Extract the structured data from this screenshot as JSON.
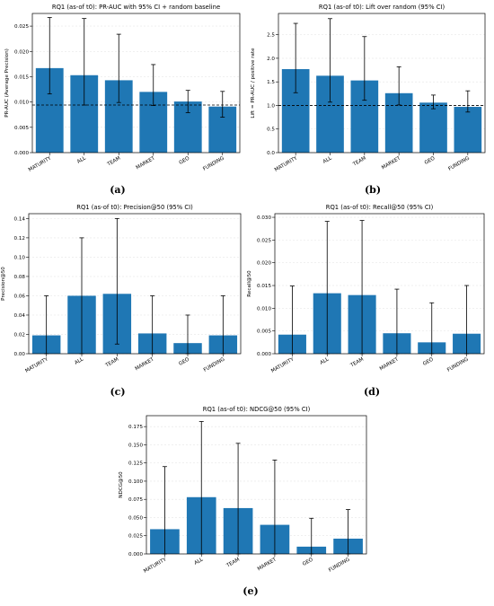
{
  "chart_data": [
    {
      "type": "bar",
      "title": "RQ1 (as-of t0): PR-AUC with 95% CI + random baseline",
      "xlabel": "",
      "ylabel": "PR-AUC (Average Precision)",
      "categories": [
        "MATURITY",
        "ALL",
        "TEAM",
        "MARKET",
        "GEO",
        "FUNDING"
      ],
      "values": [
        0.0167,
        0.0153,
        0.0143,
        0.012,
        0.0101,
        0.0091
      ],
      "ci_low": [
        0.0116,
        0.0094,
        0.0099,
        0.0093,
        0.0079,
        0.007
      ],
      "ci_high": [
        0.0267,
        0.0265,
        0.0234,
        0.0174,
        0.0123,
        0.0121
      ],
      "ylim": [
        0,
        0.0275
      ],
      "yticks": [
        0,
        0.005,
        0.01,
        0.015,
        0.02,
        0.025
      ],
      "ytick_labels": [
        "0.000",
        "0.005",
        "0.010",
        "0.015",
        "0.020",
        "0.025"
      ],
      "reference_line": 0.0094,
      "grid": "y",
      "caption": "(a)"
    },
    {
      "type": "bar",
      "title": "RQ1 (as-of t0): Lift over random (95% CI)",
      "xlabel": "",
      "ylabel": "Lift = PR-AUC / positive rate",
      "categories": [
        "MATURITY",
        "ALL",
        "TEAM",
        "MARKET",
        "GEO",
        "FUNDING"
      ],
      "values": [
        1.77,
        1.63,
        1.53,
        1.26,
        1.06,
        0.97
      ],
      "ci_low": [
        1.27,
        1.07,
        1.11,
        1.01,
        0.93,
        0.86
      ],
      "ci_high": [
        2.74,
        2.84,
        2.46,
        1.82,
        1.22,
        1.31
      ],
      "ylim": [
        0,
        2.95
      ],
      "yticks": [
        0,
        0.5,
        1,
        1.5,
        2,
        2.5
      ],
      "ytick_labels": [
        "0.0",
        "0.5",
        "1.0",
        "1.5",
        "2.0",
        "2.5"
      ],
      "reference_line": 1.0,
      "grid": "y",
      "caption": "(b)"
    },
    {
      "type": "bar",
      "title": "RQ1 (as-of t0): Precision@50 (95% CI)",
      "xlabel": "",
      "ylabel": "Precision@50",
      "categories": [
        "MATURITY",
        "ALL",
        "TEAM",
        "MARKET",
        "GEO",
        "FUNDING"
      ],
      "values": [
        0.019,
        0.06,
        0.062,
        0.021,
        0.011,
        0.019
      ],
      "ci_low": [
        0,
        0,
        0.01,
        0,
        0,
        0
      ],
      "ci_high": [
        0.06,
        0.12,
        0.14,
        0.06,
        0.04,
        0.06
      ],
      "ylim": [
        0,
        0.145
      ],
      "yticks": [
        0,
        0.02,
        0.04,
        0.06,
        0.08,
        0.1,
        0.12,
        0.14
      ],
      "ytick_labels": [
        "0.00",
        "0.02",
        "0.04",
        "0.06",
        "0.08",
        "0.10",
        "0.12",
        "0.14"
      ],
      "grid": "y",
      "caption": "(c)"
    },
    {
      "type": "bar",
      "title": "RQ1 (as-of t0): Recall@50 (95% CI)",
      "xlabel": "",
      "ylabel": "Recall@50",
      "categories": [
        "MATURITY",
        "ALL",
        "TEAM",
        "MARKET",
        "GEO",
        "FUNDING"
      ],
      "values": [
        0.0042,
        0.0133,
        0.0129,
        0.0045,
        0.0025,
        0.0044
      ],
      "ci_low": [
        0,
        0,
        0,
        0,
        0,
        0
      ],
      "ci_high": [
        0.0149,
        0.0291,
        0.0293,
        0.0142,
        0.0112,
        0.015
      ],
      "ylim": [
        0,
        0.0308
      ],
      "yticks": [
        0,
        0.005,
        0.01,
        0.015,
        0.02,
        0.025,
        0.03
      ],
      "ytick_labels": [
        "0.000",
        "0.005",
        "0.010",
        "0.015",
        "0.020",
        "0.025",
        "0.030"
      ],
      "grid": "y",
      "caption": "(d)"
    },
    {
      "type": "bar",
      "title": "RQ1 (as-of t0): NDCG@50 (95% CI)",
      "xlabel": "",
      "ylabel": "NDCG@50",
      "categories": [
        "MATURITY",
        "ALL",
        "TEAM",
        "MARKET",
        "GEO",
        "FUNDING"
      ],
      "values": [
        0.034,
        0.078,
        0.063,
        0.04,
        0.01,
        0.021
      ],
      "ci_low": [
        0,
        0,
        0,
        0,
        0,
        0
      ],
      "ci_high": [
        0.12,
        0.182,
        0.152,
        0.129,
        0.049,
        0.061
      ],
      "ylim": [
        0,
        0.19
      ],
      "yticks": [
        0,
        0.025,
        0.05,
        0.075,
        0.1,
        0.125,
        0.15,
        0.175
      ],
      "ytick_labels": [
        "0.000",
        "0.025",
        "0.050",
        "0.075",
        "0.100",
        "0.125",
        "0.150",
        "0.175"
      ],
      "grid": "y",
      "caption": "(e)"
    }
  ],
  "colors": {
    "bar": "#1f77b4",
    "error_bar": "#000000",
    "reference_line": "#000000",
    "grid": "#e6e6e6",
    "axis": "#000000",
    "text": "#000000"
  }
}
